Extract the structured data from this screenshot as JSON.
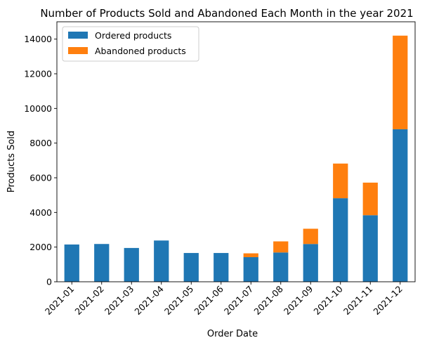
{
  "chart_data": {
    "type": "bar",
    "stacked": true,
    "title": "Number of Products Sold and Abandoned Each Month in the year 2021",
    "xlabel": "Order Date",
    "ylabel": "Products Sold",
    "ylim": [
      0,
      15000
    ],
    "yticks": [
      0,
      2000,
      4000,
      6000,
      8000,
      10000,
      12000,
      14000
    ],
    "categories": [
      "2021-01",
      "2021-02",
      "2021-03",
      "2021-04",
      "2021-05",
      "2021-06",
      "2021-07",
      "2021-08",
      "2021-09",
      "2021-10",
      "2021-11",
      "2021-12"
    ],
    "series": [
      {
        "name": "Ordered products",
        "color": "#1f77b4",
        "values": [
          2150,
          2180,
          1950,
          2380,
          1660,
          1660,
          1420,
          1690,
          2180,
          4820,
          3840,
          8800
        ]
      },
      {
        "name": "Abandoned products",
        "color": "#ff7f0e",
        "values": [
          0,
          0,
          0,
          0,
          0,
          0,
          220,
          640,
          880,
          2000,
          1880,
          5400
        ]
      }
    ],
    "legend": "top-left",
    "grid": false
  }
}
